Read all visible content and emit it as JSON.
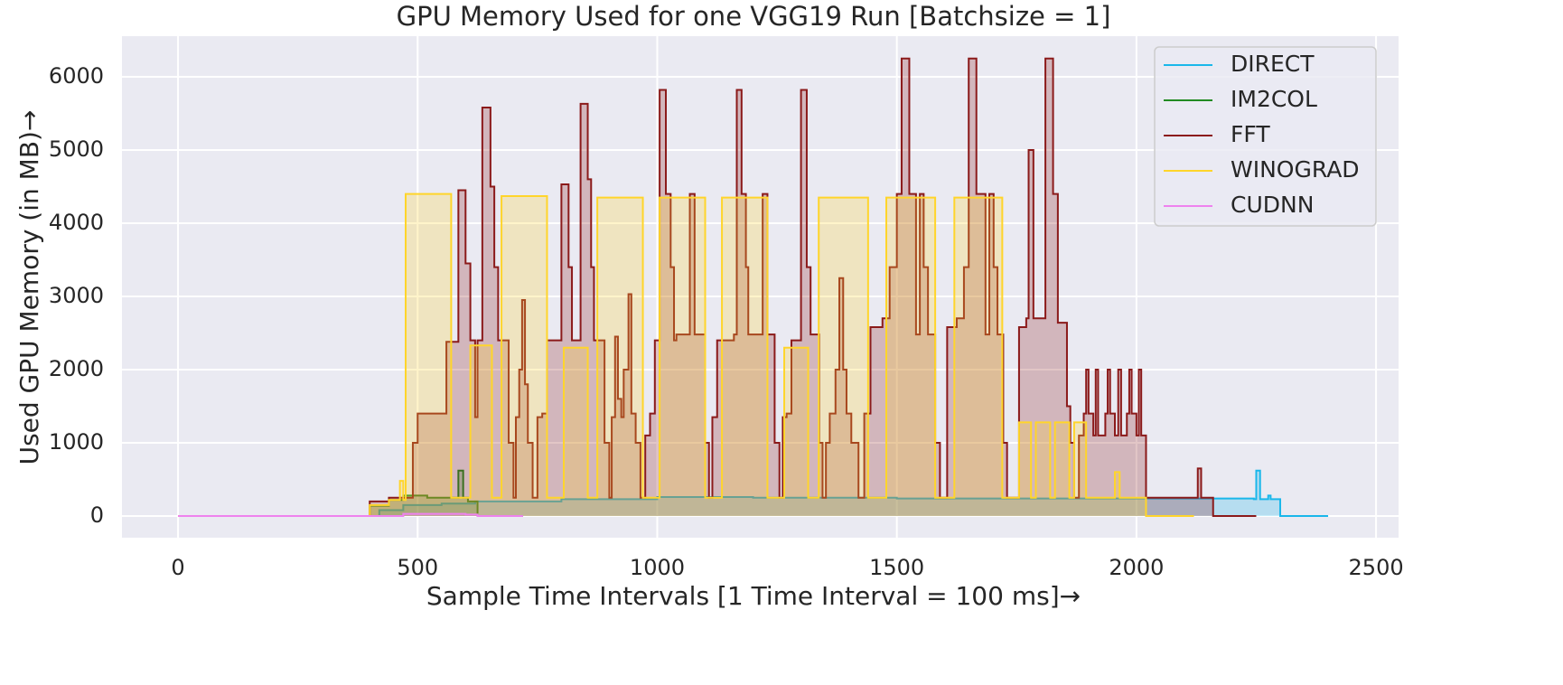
{
  "chart_data": {
    "type": "line",
    "drawstyle": "steps-post",
    "fill": true,
    "title": "GPU Memory Used for one VGG19 Run [Batchsize = 1]",
    "xlabel": "Sample Time Intervals [1 Time Interval = 100 ms]→",
    "ylabel": "Used GPU Memory (in MB)→",
    "xlim": [
      -117,
      2547
    ],
    "xticks": [
      0,
      500,
      1000,
      1500,
      2000,
      2500
    ],
    "ylim": [
      -296,
      6555
    ],
    "yticks": [
      0,
      1000,
      2000,
      3000,
      4000,
      5000,
      6000
    ],
    "grid": true,
    "legend": "upper right",
    "series": [
      {
        "name": "DIRECT",
        "color": "#1ab7ea",
        "x": [
          0,
          360,
          420,
          470,
          550,
          620,
          800,
          1000,
          1200,
          1500,
          1900,
          2245,
          2250,
          2258,
          2275,
          2280,
          2300,
          2400
        ],
        "values": [
          0,
          0,
          80,
          150,
          170,
          200,
          230,
          260,
          250,
          240,
          240,
          230,
          620,
          230,
          280,
          230,
          0,
          0
        ]
      },
      {
        "name": "IM2COL",
        "color": "#228b22",
        "x": [
          0,
          360,
          400,
          440,
          470,
          520,
          585,
          595,
          605,
          625,
          720
        ],
        "values": [
          0,
          0,
          140,
          220,
          280,
          250,
          620,
          250,
          200,
          0,
          0
        ]
      },
      {
        "name": "FFT",
        "color": "#8b1a1a",
        "x": [
          0,
          360,
          400,
          440,
          490,
          500,
          560,
          585,
          600,
          610,
          620,
          625,
          635,
          652,
          660,
          668,
          690,
          700,
          705,
          712,
          718,
          724,
          730,
          740,
          750,
          760,
          770,
          800,
          815,
          822,
          840,
          855,
          862,
          868,
          890,
          900,
          905,
          912,
          918,
          925,
          930,
          940,
          946,
          955,
          965,
          975,
          985,
          995,
          1005,
          1018,
          1028,
          1035,
          1040,
          1068,
          1078,
          1100,
          1108,
          1115,
          1125,
          1160,
          1166,
          1176,
          1185,
          1190,
          1220,
          1230,
          1245,
          1255,
          1262,
          1270,
          1280,
          1300,
          1312,
          1320,
          1338,
          1345,
          1352,
          1360,
          1372,
          1380,
          1388,
          1395,
          1405,
          1420,
          1432,
          1445,
          1470,
          1485,
          1500,
          1510,
          1526,
          1540,
          1548,
          1556,
          1565,
          1580,
          1590,
          1605,
          1625,
          1640,
          1650,
          1666,
          1685,
          1693,
          1702,
          1710,
          1722,
          1730,
          1755,
          1770,
          1775,
          1785,
          1810,
          1826,
          1836,
          1855,
          1862,
          1870,
          1880,
          1890,
          1895,
          1900,
          1910,
          1915,
          1920,
          1935,
          1940,
          1945,
          1955,
          1962,
          1968,
          1980,
          1985,
          1990,
          2000,
          2005,
          2010,
          2020,
          2125,
          2128,
          2135,
          2160,
          2250
        ],
        "values": [
          0,
          0,
          200,
          250,
          1000,
          1400,
          2380,
          4450,
          3450,
          2400,
          1350,
          2400,
          5580,
          4500,
          3400,
          2400,
          1000,
          250,
          1350,
          2000,
          2950,
          1800,
          1000,
          250,
          1350,
          1400,
          2400,
          4530,
          3400,
          2400,
          5630,
          4600,
          3400,
          2400,
          1000,
          250,
          1350,
          2450,
          1600,
          1350,
          2000,
          3030,
          1400,
          1000,
          250,
          1100,
          1400,
          2400,
          5820,
          4400,
          3400,
          2400,
          2480,
          4400,
          2480,
          1000,
          250,
          1350,
          2400,
          2480,
          5820,
          4400,
          3400,
          2480,
          4400,
          2480,
          1000,
          250,
          1350,
          1400,
          2400,
          5820,
          3400,
          2480,
          1000,
          250,
          1000,
          1400,
          2000,
          3250,
          2000,
          1400,
          1000,
          250,
          1400,
          2580,
          2700,
          3400,
          4400,
          6250,
          4400,
          2480,
          4400,
          3400,
          2480,
          1000,
          250,
          2580,
          2700,
          3400,
          6250,
          4400,
          2480,
          4400,
          3400,
          2480,
          1000,
          250,
          2580,
          2700,
          5000,
          2700,
          6250,
          4400,
          2640,
          1500,
          1000,
          250,
          1100,
          1400,
          2000,
          1400,
          1100,
          2000,
          1100,
          1400,
          2000,
          1400,
          1100,
          2000,
          1100,
          1400,
          2000,
          1400,
          1100,
          2000,
          1100,
          250,
          250,
          650,
          250,
          0,
          0
        ]
      },
      {
        "name": "WINOGRAD",
        "color": "#ffd52b",
        "x": [
          0,
          360,
          400,
          440,
          463,
          470,
          475,
          570,
          610,
          655,
          675,
          770,
          805,
          855,
          875,
          970,
          1005,
          1100,
          1135,
          1230,
          1265,
          1315,
          1337,
          1440,
          1478,
          1580,
          1620,
          1720,
          1755,
          1780,
          1790,
          1820,
          1830,
          1860,
          1870,
          1895,
          1955,
          1965,
          2020,
          2120
        ],
        "values": [
          0,
          0,
          150,
          220,
          480,
          220,
          4400,
          250,
          2330,
          250,
          4370,
          250,
          2300,
          250,
          4350,
          250,
          4350,
          250,
          4350,
          250,
          2300,
          250,
          4350,
          250,
          4350,
          250,
          4350,
          250,
          1280,
          250,
          1280,
          250,
          1280,
          250,
          1280,
          250,
          600,
          250,
          0,
          0
        ]
      },
      {
        "name": "CUDNN",
        "color": "#ee82ee",
        "x": [
          0,
          360,
          470,
          600,
          625,
          720
        ],
        "values": [
          0,
          0,
          30,
          20,
          0,
          0
        ]
      }
    ]
  }
}
